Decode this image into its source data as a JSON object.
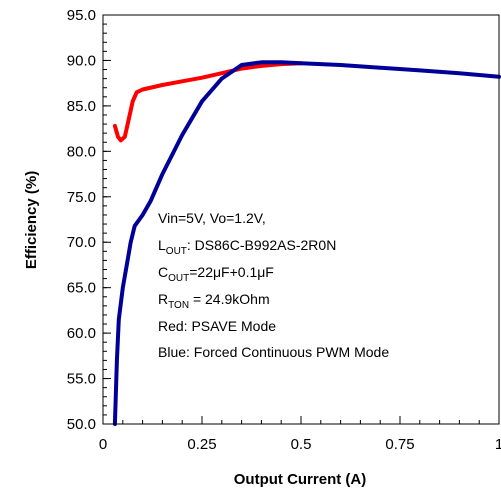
{
  "chart_data": {
    "type": "line",
    "xlabel": "Output Current (A)",
    "ylabel": "Efficiency (%)",
    "xlim": [
      0,
      1
    ],
    "ylim": [
      50,
      95
    ],
    "x_ticks": [
      0,
      0.25,
      0.5,
      0.75,
      1
    ],
    "x_tick_labels": [
      "0",
      "0.25",
      "0.5",
      "0.75",
      "1"
    ],
    "y_ticks": [
      50,
      55,
      60,
      65,
      70,
      75,
      80,
      85,
      90,
      95
    ],
    "y_tick_labels": [
      "50.0",
      "55.0",
      "60.0",
      "65.0",
      "70.0",
      "75.0",
      "80.0",
      "85.0",
      "90.0",
      "95.0"
    ],
    "grid": false,
    "annotations": {
      "line1": "Vin=5V, Vo=1.2V,",
      "lout_main": "L",
      "lout_sub": "OUT",
      "lout_rest": ": DS86C-B992AS-2R0N",
      "cout_main": "C",
      "cout_sub": "OUT",
      "cout_rest": "=22μF+0.1μF",
      "rton_main": "R",
      "rton_sub": "TON",
      "rton_rest": " = 24.9kOhm",
      "red_note": "Red: PSAVE Mode",
      "blue_note": "Blue: Forced Continuous PWM Mode"
    },
    "series": [
      {
        "color": "#ff0000",
        "x": [
          0.03,
          0.038,
          0.045,
          0.055,
          0.065,
          0.075,
          0.085,
          0.1,
          0.15,
          0.2,
          0.25,
          0.3,
          0.35,
          0.4,
          0.45,
          0.5
        ],
        "y": [
          82.8,
          81.6,
          81.2,
          81.6,
          83.5,
          85.5,
          86.5,
          86.8,
          87.3,
          87.7,
          88.1,
          88.6,
          89.1,
          89.4,
          89.6,
          89.7
        ]
      },
      {
        "color": "#000099",
        "x": [
          0.03,
          0.035,
          0.04,
          0.05,
          0.06,
          0.07,
          0.08,
          0.1,
          0.12,
          0.15,
          0.2,
          0.25,
          0.3,
          0.35,
          0.4,
          0.45,
          0.5,
          0.6,
          0.7,
          0.8,
          0.9,
          1.0
        ],
        "y": [
          50.0,
          57.0,
          61.5,
          65.0,
          67.5,
          70.0,
          71.8,
          73.0,
          74.5,
          77.5,
          81.8,
          85.5,
          88.0,
          89.5,
          89.8,
          89.8,
          89.7,
          89.5,
          89.2,
          88.9,
          88.6,
          88.2
        ]
      }
    ]
  }
}
